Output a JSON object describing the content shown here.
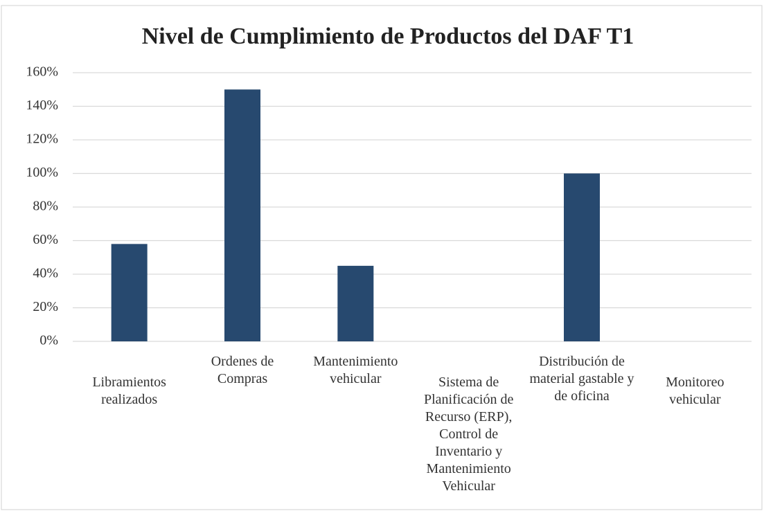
{
  "chart_data": {
    "type": "bar",
    "title": "Nivel de Cumplimiento de Productos del DAF T1",
    "categories": [
      "Libramientos realizados",
      "Ordenes de Compras",
      "Mantenimiento vehicular",
      "Sistema de Planificación de Recurso (ERP), Control de Inventario y Mantenimiento Vehicular",
      "Distribución de material gastable y de oficina",
      "Monitoreo vehicular"
    ],
    "values": [
      58,
      150,
      45,
      0,
      100,
      0
    ],
    "color": "#27496f",
    "ylim": [
      0,
      160
    ],
    "yticks": [
      {
        "value": 0,
        "label": "0%"
      },
      {
        "value": 20,
        "label": "20%"
      },
      {
        "value": 40,
        "label": "40%"
      },
      {
        "value": 60,
        "label": "60%"
      },
      {
        "value": 80,
        "label": "80%"
      },
      {
        "value": 100,
        "label": "100%"
      },
      {
        "value": 120,
        "label": "120%"
      },
      {
        "value": 140,
        "label": "140%"
      },
      {
        "value": 160,
        "label": "160%"
      }
    ],
    "grid": true
  }
}
